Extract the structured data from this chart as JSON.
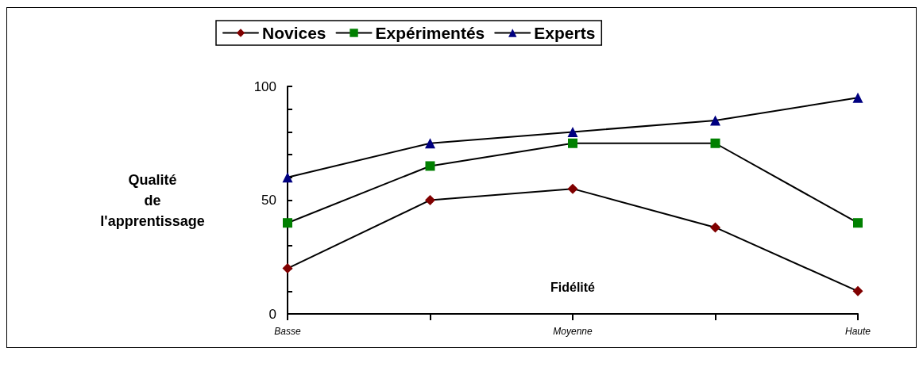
{
  "chart_data": {
    "type": "line",
    "categories": [
      "Basse",
      null,
      "Moyenne",
      null,
      "Haute"
    ],
    "xlabel": "Fidélité",
    "ylabel": "Qualité de l'apprentissage",
    "ylim": [
      0,
      100
    ],
    "yticks": [
      0,
      {
        "value": 10,
        "label": null
      },
      {
        "value": 20,
        "label": null
      },
      {
        "value": 30,
        "label": null
      },
      {
        "value": 40,
        "label": null
      },
      50,
      {
        "value": 60,
        "label": null
      },
      {
        "value": 70,
        "label": null
      },
      {
        "value": 80,
        "label": null
      },
      {
        "value": 90,
        "label": null
      },
      100
    ],
    "series": [
      {
        "name": "Novices",
        "color": "#800000",
        "marker": "diamond",
        "values": [
          20,
          50,
          55,
          38,
          10
        ]
      },
      {
        "name": "Expérimentés",
        "color": "#008000",
        "marker": "square",
        "values": [
          40,
          65,
          75,
          75,
          40
        ]
      },
      {
        "name": "Experts",
        "color": "#000080",
        "marker": "triangle",
        "values": [
          60,
          75,
          80,
          85,
          95
        ]
      }
    ],
    "legend": "top",
    "grid": false
  }
}
